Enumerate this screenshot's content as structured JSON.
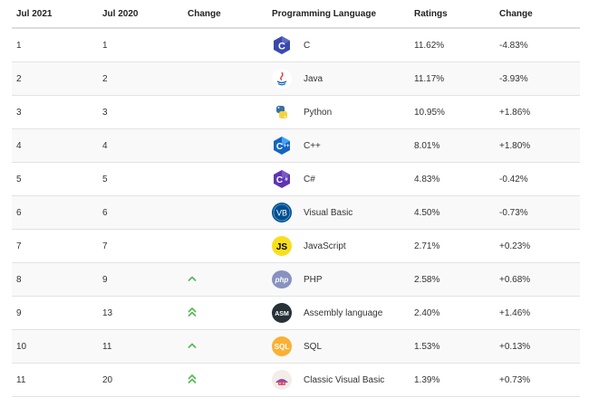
{
  "headers": {
    "jul2021": "Jul 2021",
    "jul2020": "Jul 2020",
    "change": "Change",
    "language": "Programming Language",
    "ratings": "Ratings",
    "rating_change": "Change"
  },
  "colors": {
    "arrow": "#5cb85c",
    "row_stripe": "#f9f9f9",
    "row_border": "#e3e3e3"
  },
  "rows": [
    {
      "jul2021": "1",
      "jul2020": "1",
      "trend": "none",
      "icon": "c-logo-icon",
      "language": "C",
      "rating": "11.62%",
      "change": "-4.83%"
    },
    {
      "jul2021": "2",
      "jul2020": "2",
      "trend": "none",
      "icon": "java-logo-icon",
      "language": "Java",
      "rating": "11.17%",
      "change": "-3.93%"
    },
    {
      "jul2021": "3",
      "jul2020": "3",
      "trend": "none",
      "icon": "python-logo-icon",
      "language": "Python",
      "rating": "10.95%",
      "change": "+1.86%"
    },
    {
      "jul2021": "4",
      "jul2020": "4",
      "trend": "none",
      "icon": "cpp-logo-icon",
      "language": "C++",
      "rating": "8.01%",
      "change": "+1.80%"
    },
    {
      "jul2021": "5",
      "jul2020": "5",
      "trend": "none",
      "icon": "csharp-logo-icon",
      "language": "C#",
      "rating": "4.83%",
      "change": "-0.42%"
    },
    {
      "jul2021": "6",
      "jul2020": "6",
      "trend": "none",
      "icon": "visual-basic-logo-icon",
      "language": "Visual Basic",
      "rating": "4.50%",
      "change": "-0.73%"
    },
    {
      "jul2021": "7",
      "jul2020": "7",
      "trend": "none",
      "icon": "javascript-logo-icon",
      "language": "JavaScript",
      "rating": "2.71%",
      "change": "+0.23%"
    },
    {
      "jul2021": "8",
      "jul2020": "9",
      "trend": "up",
      "icon": "php-logo-icon",
      "language": "PHP",
      "rating": "2.58%",
      "change": "+0.68%"
    },
    {
      "jul2021": "9",
      "jul2020": "13",
      "trend": "double",
      "icon": "assembly-logo-icon",
      "language": "Assembly language",
      "rating": "2.40%",
      "change": "+1.46%"
    },
    {
      "jul2021": "10",
      "jul2020": "11",
      "trend": "up",
      "icon": "sql-logo-icon",
      "language": "SQL",
      "rating": "1.53%",
      "change": "+0.13%"
    },
    {
      "jul2021": "11",
      "jul2020": "20",
      "trend": "double",
      "icon": "classic-vb-logo-icon",
      "language": "Classic Visual Basic",
      "rating": "1.39%",
      "change": "+0.73%"
    }
  ]
}
